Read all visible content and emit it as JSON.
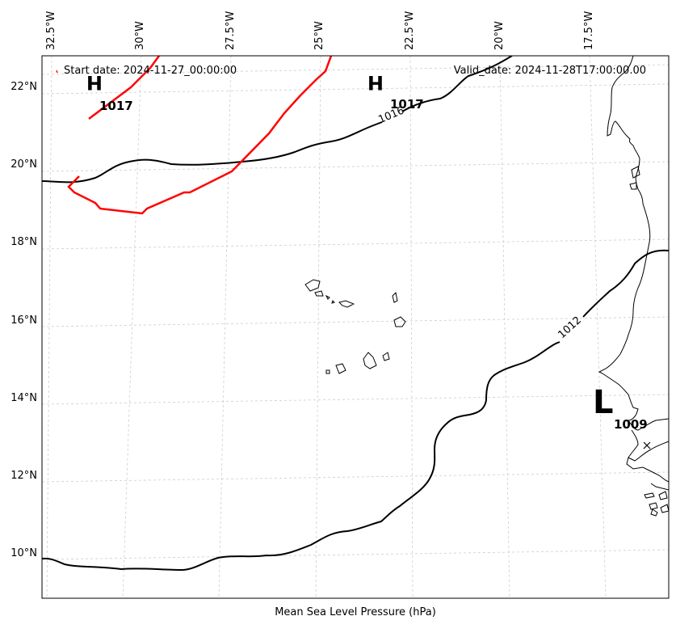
{
  "map": {
    "start_date": "Start date: 2024-11-27_00:00:00",
    "valid_date": "Valid_date: 2024-11-28T17:00:00.00",
    "xlabel": "Mean Sea Level Pressure (hPa)",
    "track_color": "#ff0000",
    "isobar_color": "#000000",
    "grid": true,
    "lon_ticks": [
      "32.5°W",
      "30°W",
      "27.5°W",
      "25°W",
      "22.5°W",
      "20°W",
      "17.5°W"
    ],
    "lat_ticks": [
      "22°N",
      "20°N",
      "18°N",
      "16°N",
      "14°N",
      "12°N",
      "10°N"
    ],
    "isobars": [
      {
        "value": 1016,
        "label": "1016"
      },
      {
        "value": 1012,
        "label": "1012"
      }
    ],
    "pressure_centers": [
      {
        "type": "high",
        "symbol": "H",
        "value": "1017"
      },
      {
        "type": "high",
        "symbol": "H",
        "value": "1017"
      },
      {
        "type": "low",
        "symbol": "L",
        "value": "1009"
      }
    ]
  }
}
